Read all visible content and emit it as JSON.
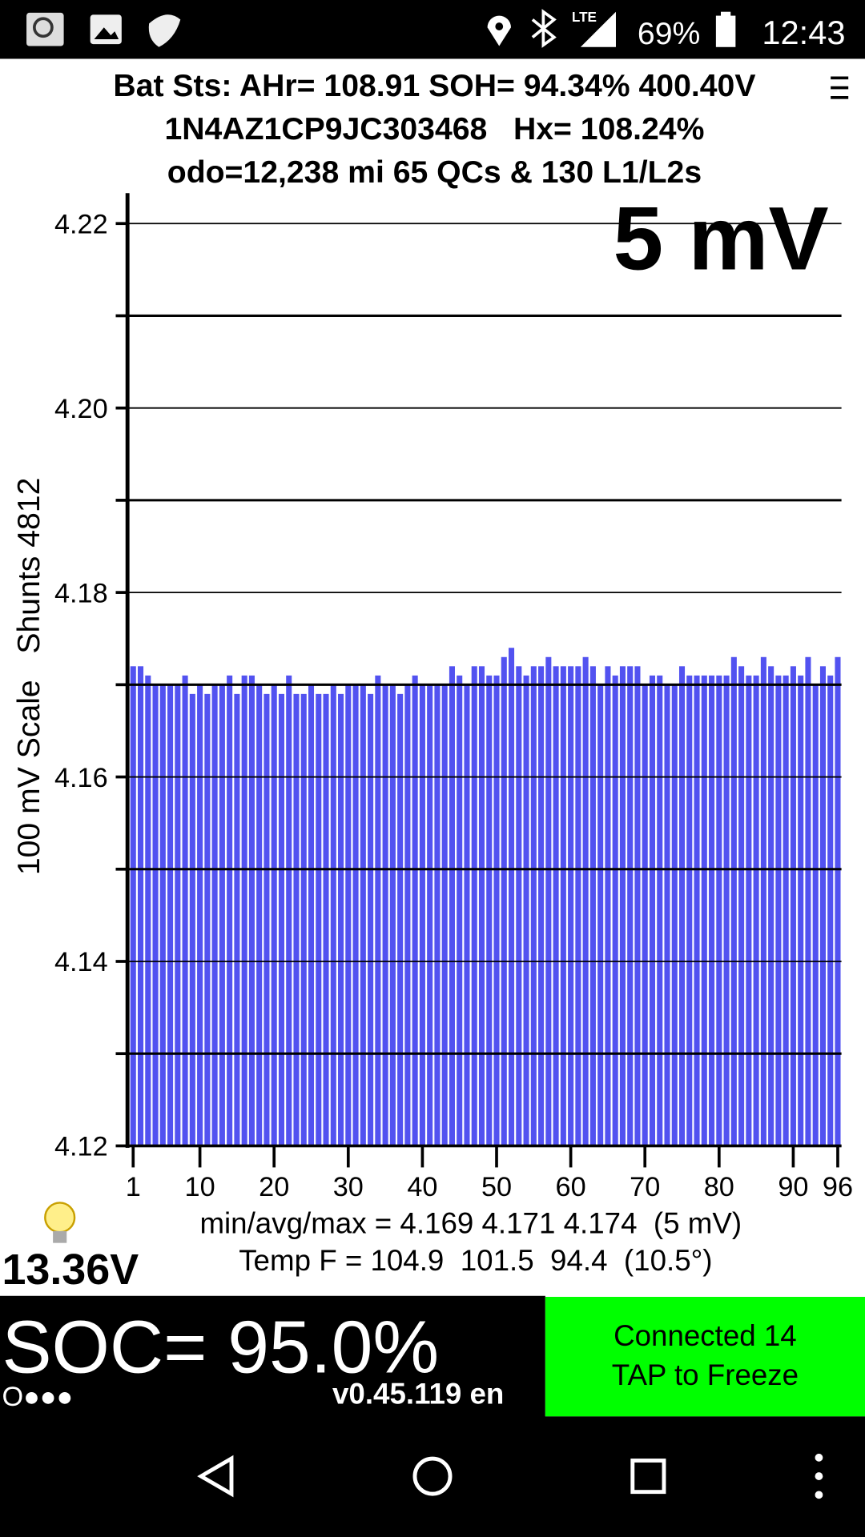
{
  "status_bar": {
    "network": "LTE",
    "battery": "69%",
    "time": "12:43"
  },
  "header": {
    "line1": "Bat Sts: AHr= 108.91 SOH= 94.34% 400.40V",
    "line2": "1N4AZ1CP9JC303468   Hx= 108.24%",
    "line3": "odo=12,238 mi 65 QCs & 130 L1/L2s"
  },
  "chart_data": {
    "type": "bar",
    "annotation": "5 mV",
    "ylabel": "100 mV Scale   Shunts 4812",
    "color": "#5252f0",
    "grid": true,
    "categories": [
      "1",
      null,
      null,
      null,
      null,
      null,
      null,
      null,
      null,
      "10",
      null,
      null,
      null,
      null,
      null,
      null,
      null,
      null,
      null,
      "20",
      null,
      null,
      null,
      null,
      null,
      null,
      null,
      null,
      null,
      "30",
      null,
      null,
      null,
      null,
      null,
      null,
      null,
      null,
      null,
      "40",
      null,
      null,
      null,
      null,
      null,
      null,
      null,
      null,
      null,
      "50",
      null,
      null,
      null,
      null,
      null,
      null,
      null,
      null,
      null,
      "60",
      null,
      null,
      null,
      null,
      null,
      null,
      null,
      null,
      null,
      "70",
      null,
      null,
      null,
      null,
      null,
      null,
      null,
      null,
      null,
      "80",
      null,
      null,
      null,
      null,
      null,
      null,
      null,
      null,
      null,
      "90",
      null,
      null,
      null,
      null,
      null,
      "96"
    ],
    "values": [
      4.172,
      4.172,
      4.171,
      4.17,
      4.17,
      4.17,
      4.17,
      4.171,
      4.169,
      4.17,
      4.169,
      4.17,
      4.17,
      4.171,
      4.169,
      4.171,
      4.171,
      4.17,
      4.169,
      4.17,
      4.169,
      4.171,
      4.169,
      4.169,
      4.17,
      4.169,
      4.169,
      4.17,
      4.169,
      4.17,
      4.17,
      4.17,
      4.169,
      4.171,
      4.17,
      4.17,
      4.169,
      4.17,
      4.171,
      4.17,
      4.17,
      4.17,
      4.17,
      4.172,
      4.171,
      4.17,
      4.172,
      4.172,
      4.171,
      4.171,
      4.173,
      4.174,
      4.172,
      4.171,
      4.172,
      4.172,
      4.173,
      4.172,
      4.172,
      4.172,
      4.172,
      4.173,
      4.172,
      4.17,
      4.172,
      4.171,
      4.172,
      4.172,
      4.172,
      4.17,
      4.171,
      4.171,
      4.17,
      4.17,
      4.172,
      4.171,
      4.171,
      4.171,
      4.171,
      4.171,
      4.171,
      4.173,
      4.172,
      4.171,
      4.171,
      4.173,
      4.172,
      4.171,
      4.171,
      4.172,
      4.171,
      4.173,
      4.17,
      4.172,
      4.171,
      4.173
    ],
    "ylim": [
      4.12,
      4.2233
    ],
    "yticks": [
      4.12,
      4.14,
      4.16,
      4.18,
      {
        "value": 4.2,
        "label": "4.20"
      },
      4.22
    ],
    "minor_yticks": [
      4.13,
      4.15,
      4.17,
      4.19,
      4.21
    ]
  },
  "stats": {
    "line1": "min/avg/max = 4.169 4.171 4.174  (5 mV)",
    "line2": "Temp F = 104.9  101.5  94.4  (10.5°)",
    "aux_voltage": "13.36V"
  },
  "footer": {
    "soc": "SOC= 95.0%",
    "dots": "O●●●",
    "version": "v0.45.119 en",
    "status1": "Connected 14",
    "status2": "TAP to Freeze"
  }
}
